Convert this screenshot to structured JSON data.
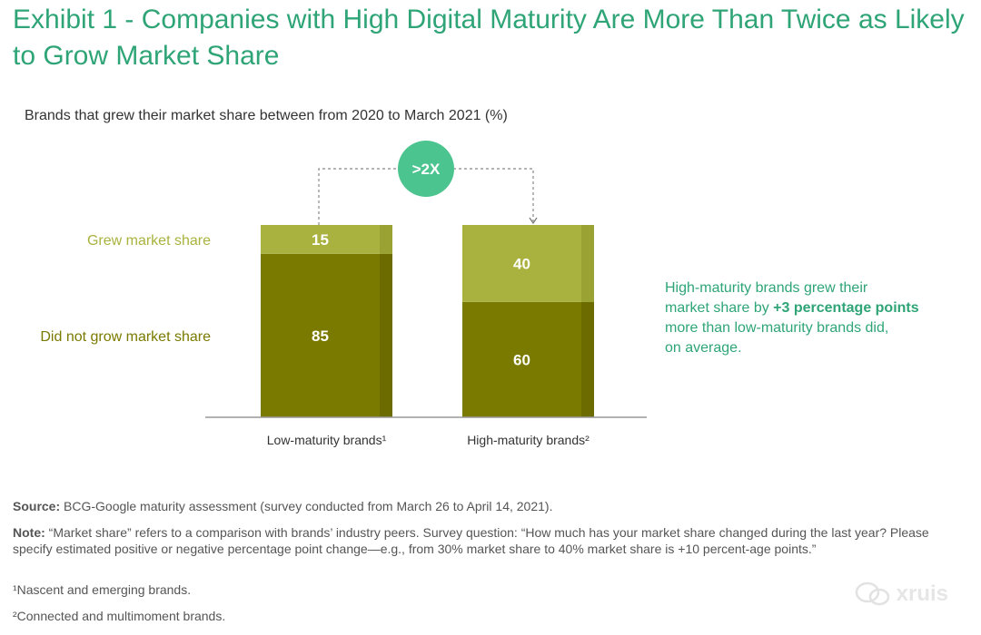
{
  "title": "Exhibit 1 - Companies with High Digital Maturity Are More Than Twice as Likely to Grow Market Share",
  "colors": {
    "title": "#2fa577",
    "grew": "#a9b23e",
    "grew_shade": "#9aa233",
    "not_grew": "#7a7a00",
    "not_grew_shade": "#6b6b00",
    "badge": "#4cc48f",
    "annotation": "#2fa577"
  },
  "chart_data": {
    "type": "bar",
    "stacked": true,
    "title": "Brands that grew their market share between from 2020 to March 2021 (%)",
    "categories": [
      "Low-maturity brands¹",
      "High-maturity brands²"
    ],
    "series": [
      {
        "name": "Did not grow market share",
        "values": [
          85,
          60
        ]
      },
      {
        "name": "Grew market share",
        "values": [
          15,
          40
        ]
      }
    ],
    "ylim": [
      0,
      100
    ],
    "grid": false,
    "legend": "left",
    "badge": ">2X"
  },
  "annotation": {
    "line1": "High-maturity brands grew their",
    "line2_prefix": "market share by ",
    "line2_bold": "+3 percentage points",
    "line3": "more than low-maturity brands did,",
    "line4": "on average."
  },
  "footer": {
    "source_label": "Source:",
    "source_text": " BCG-Google maturity assessment (survey conducted from March 26 to April 14, 2021).",
    "note_label": "Note:",
    "note_text": " “Market share” refers to a comparison with brands’ industry peers. Survey question: “How much has your market share changed during the last year? Please specify estimated positive or negative percentage point change—e.g., from 30% market share to 40% market share is +10 percent-age points.”",
    "fn1": "¹Nascent and emerging brands.",
    "fn2": "²Connected and multimoment brands."
  },
  "watermark": "xruis"
}
